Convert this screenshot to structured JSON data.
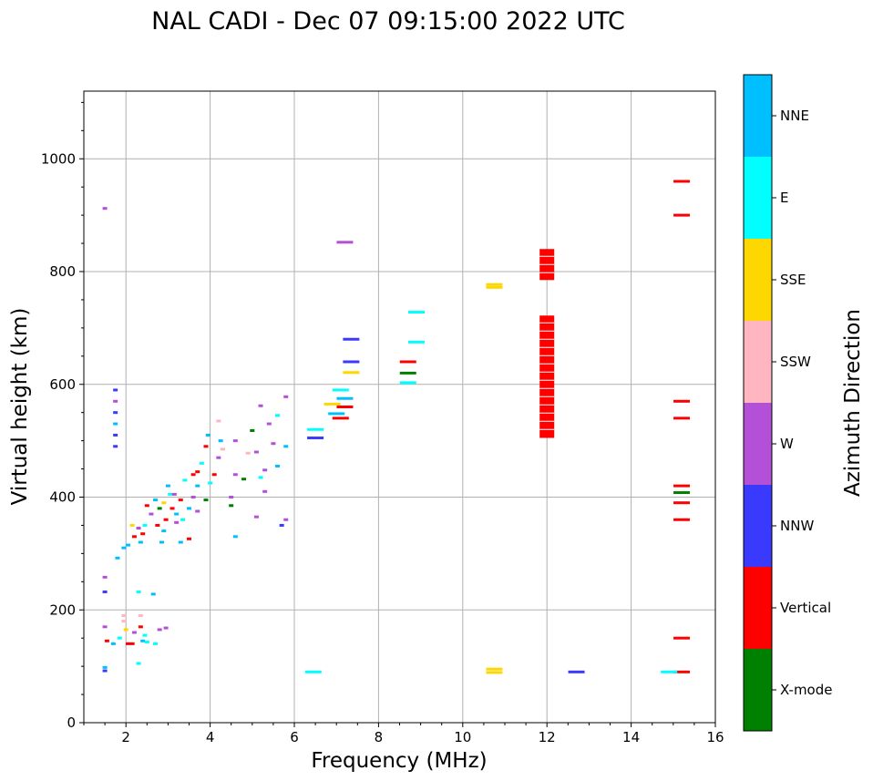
{
  "chart_data": {
    "type": "scatter",
    "title": "NAL CADI - Dec 07 09:15:00 2022 UTC",
    "xlabel": "Frequency (MHz)",
    "ylabel": "Virtual height (km)",
    "xlim": [
      1,
      16
    ],
    "ylim": [
      0,
      1120
    ],
    "xticks": [
      2,
      4,
      6,
      8,
      10,
      12,
      14,
      16
    ],
    "yticks": [
      0,
      200,
      400,
      600,
      800,
      1000
    ],
    "grid": true,
    "colorbar": {
      "label": "Azimuth Direction",
      "categories": [
        {
          "name": "X-mode",
          "color": "#008000"
        },
        {
          "name": "Vertical",
          "color": "#ff0000"
        },
        {
          "name": "NNW",
          "color": "#3a3aff"
        },
        {
          "name": "W",
          "color": "#b450d8"
        },
        {
          "name": "SSW",
          "color": "#ffb6c1"
        },
        {
          "name": "SSE",
          "color": "#ffd700"
        },
        {
          "name": "E",
          "color": "#00ffff"
        },
        {
          "name": "NNE",
          "color": "#00bfff"
        }
      ]
    },
    "points": [
      [
        15.2,
        960,
        "Vertical"
      ],
      [
        15.2,
        900,
        "Vertical"
      ],
      [
        15.2,
        570,
        "Vertical"
      ],
      [
        15.2,
        540,
        "Vertical"
      ],
      [
        15.2,
        420,
        "Vertical"
      ],
      [
        15.2,
        408,
        "X-mode"
      ],
      [
        15.2,
        390,
        "Vertical"
      ],
      [
        15.2,
        360,
        "Vertical"
      ],
      [
        15.2,
        150,
        "Vertical"
      ],
      [
        15.2,
        90,
        "Vertical"
      ],
      [
        14.9,
        90,
        "E"
      ],
      [
        12.7,
        90,
        "NNW"
      ],
      [
        10.75,
        95,
        "SSE"
      ],
      [
        10.75,
        89,
        "SSE"
      ],
      [
        10.75,
        777,
        "SSE"
      ],
      [
        10.75,
        772,
        "SSE"
      ],
      [
        8.7,
        640,
        "Vertical"
      ],
      [
        8.7,
        620,
        "X-mode"
      ],
      [
        8.7,
        603,
        "E"
      ],
      [
        8.9,
        728,
        "E"
      ],
      [
        8.9,
        675,
        "E"
      ],
      [
        7.35,
        680,
        "NNW"
      ],
      [
        7.35,
        640,
        "NNW"
      ],
      [
        7.35,
        621,
        "SSE"
      ],
      [
        7.2,
        852,
        "W"
      ],
      [
        7.1,
        590,
        "E"
      ],
      [
        7.2,
        575,
        "NNE"
      ],
      [
        7.2,
        560,
        "Vertical"
      ],
      [
        7.0,
        548,
        "NNE"
      ],
      [
        7.1,
        540,
        "Vertical"
      ],
      [
        6.9,
        565,
        "SSE"
      ],
      [
        6.5,
        520,
        "E"
      ],
      [
        6.5,
        505,
        "NNW"
      ],
      [
        6.45,
        90,
        "E"
      ],
      [
        5.8,
        578,
        "W"
      ],
      [
        5.6,
        545,
        "E"
      ],
      [
        5.4,
        530,
        "W"
      ],
      [
        5.2,
        562,
        "W"
      ],
      [
        5.0,
        518,
        "X-mode"
      ],
      [
        5.5,
        495,
        "W"
      ],
      [
        5.8,
        490,
        "NNE"
      ],
      [
        5.1,
        480,
        "W"
      ],
      [
        4.9,
        478,
        "SSW"
      ],
      [
        5.6,
        455,
        "NNE"
      ],
      [
        5.3,
        448,
        "W"
      ],
      [
        5.2,
        435,
        "E"
      ],
      [
        4.8,
        432,
        "X-mode"
      ],
      [
        5.3,
        410,
        "W"
      ],
      [
        5.8,
        360,
        "W"
      ],
      [
        5.7,
        350,
        "NNW"
      ],
      [
        5.1,
        365,
        "W"
      ],
      [
        4.6,
        440,
        "W"
      ],
      [
        4.6,
        500,
        "W"
      ],
      [
        4.5,
        400,
        "W"
      ],
      [
        4.5,
        385,
        "X-mode"
      ],
      [
        4.6,
        330,
        "NNE"
      ],
      [
        4.2,
        535,
        "SSW"
      ],
      [
        4.25,
        500,
        "NNE"
      ],
      [
        4.2,
        470,
        "W"
      ],
      [
        4.1,
        440,
        "Vertical"
      ],
      [
        3.95,
        510,
        "NNE"
      ],
      [
        3.9,
        490,
        "Vertical"
      ],
      [
        3.8,
        460,
        "E"
      ],
      [
        3.7,
        445,
        "Vertical"
      ],
      [
        3.7,
        420,
        "NNE"
      ],
      [
        3.6,
        400,
        "W"
      ],
      [
        3.5,
        380,
        "NNE"
      ],
      [
        3.4,
        430,
        "E"
      ],
      [
        3.3,
        395,
        "Vertical"
      ],
      [
        3.2,
        370,
        "NNE"
      ],
      [
        3.2,
        355,
        "W"
      ],
      [
        3.1,
        380,
        "Vertical"
      ],
      [
        3.05,
        405,
        "E"
      ],
      [
        3.0,
        420,
        "NNE"
      ],
      [
        2.95,
        360,
        "Vertical"
      ],
      [
        2.9,
        340,
        "NNE"
      ],
      [
        2.8,
        380,
        "X-mode"
      ],
      [
        2.75,
        350,
        "Vertical"
      ],
      [
        2.7,
        395,
        "NNE"
      ],
      [
        2.6,
        370,
        "W"
      ],
      [
        2.5,
        385,
        "Vertical"
      ],
      [
        2.45,
        350,
        "E"
      ],
      [
        2.4,
        335,
        "Vertical"
      ],
      [
        2.35,
        320,
        "NNE"
      ],
      [
        2.3,
        345,
        "W"
      ],
      [
        2.2,
        330,
        "Vertical"
      ],
      [
        2.15,
        350,
        "SSE"
      ],
      [
        2.05,
        315,
        "NNE"
      ],
      [
        1.95,
        310,
        "NNE"
      ],
      [
        1.8,
        292,
        "NNE"
      ],
      [
        3.3,
        320,
        "NNE"
      ],
      [
        3.5,
        326,
        "Vertical"
      ],
      [
        3.9,
        395,
        "X-mode"
      ],
      [
        4.0,
        425,
        "E"
      ],
      [
        3.6,
        440,
        "Vertical"
      ],
      [
        3.35,
        360,
        "E"
      ],
      [
        2.9,
        390,
        "SSE"
      ],
      [
        2.85,
        320,
        "NNE"
      ],
      [
        3.7,
        375,
        "W"
      ],
      [
        4.3,
        485,
        "SSW"
      ],
      [
        3.15,
        405,
        "W"
      ],
      [
        1.75,
        590,
        "NNW"
      ],
      [
        1.75,
        570,
        "W"
      ],
      [
        1.75,
        550,
        "NNW"
      ],
      [
        1.75,
        530,
        "NNE"
      ],
      [
        1.75,
        510,
        "NNW"
      ],
      [
        1.75,
        490,
        "NNW"
      ],
      [
        1.5,
        912,
        "W"
      ],
      [
        1.5,
        258,
        "W"
      ],
      [
        1.5,
        232,
        "NNW"
      ],
      [
        1.5,
        170,
        "W"
      ],
      [
        1.55,
        145,
        "Vertical"
      ],
      [
        1.7,
        140,
        "NNE"
      ],
      [
        1.85,
        150,
        "E"
      ],
      [
        1.95,
        180,
        "SSW"
      ],
      [
        2.0,
        165,
        "SSE"
      ],
      [
        2.05,
        140,
        "Vertical"
      ],
      [
        2.2,
        160,
        "W"
      ],
      [
        2.35,
        170,
        "Vertical"
      ],
      [
        2.4,
        145,
        "NNE"
      ],
      [
        2.5,
        143,
        "E"
      ],
      [
        2.35,
        190,
        "SSW"
      ],
      [
        2.3,
        232,
        "E"
      ],
      [
        2.7,
        140,
        "E"
      ],
      [
        2.8,
        165,
        "W"
      ],
      [
        2.95,
        168,
        "W"
      ],
      [
        2.65,
        228,
        "NNE"
      ],
      [
        2.3,
        105,
        "E"
      ],
      [
        1.5,
        98,
        "NNE"
      ],
      [
        1.5,
        92,
        "NNW"
      ],
      [
        1.95,
        190,
        "SSW"
      ],
      [
        2.15,
        140,
        "Vertical"
      ],
      [
        2.45,
        155,
        "E"
      ]
    ],
    "vertical_columns": [
      {
        "x": 12.0,
        "ranges": [
          [
            505,
            722
          ],
          [
            785,
            840
          ]
        ],
        "category": "Vertical"
      }
    ]
  }
}
